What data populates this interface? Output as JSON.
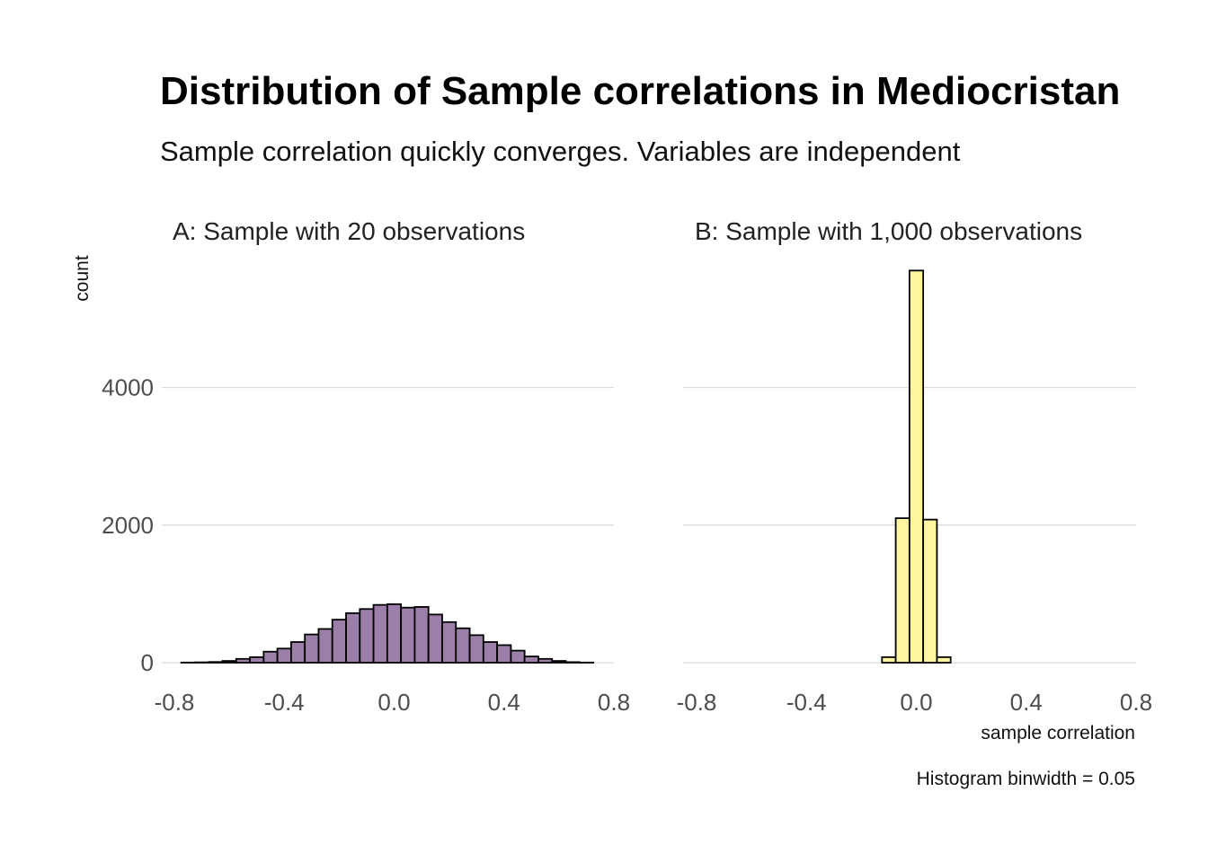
{
  "chart_data": {
    "type": "bar",
    "title": "Distribution of Sample correlations in Mediocristan",
    "subtitle": "Sample correlation quickly converges. Variables are independent",
    "xlabel": "sample correlation",
    "ylabel": "count",
    "caption": "Histogram binwidth = 0.05",
    "binwidth": 0.05,
    "xlim": [
      -0.8,
      0.8
    ],
    "ylim": [
      0,
      5900
    ],
    "x_ticks": [
      -0.8,
      -0.4,
      0.0,
      0.4,
      0.8
    ],
    "x_tick_labels": [
      "-0.8",
      "-0.4",
      "0.0",
      "0.4",
      "0.8"
    ],
    "y_ticks": [
      0,
      2000,
      4000
    ],
    "y_tick_labels": [
      "0",
      "2000",
      "4000"
    ],
    "grid": "horizontal",
    "panels": [
      {
        "name": "A: Sample with 20 observations",
        "color": "#9b7fa8",
        "bin_centers": [
          -0.75,
          -0.7,
          -0.65,
          -0.6,
          -0.55,
          -0.5,
          -0.45,
          -0.4,
          -0.35,
          -0.3,
          -0.25,
          -0.2,
          -0.15,
          -0.1,
          -0.05,
          0.0,
          0.05,
          0.1,
          0.15,
          0.2,
          0.25,
          0.3,
          0.35,
          0.4,
          0.45,
          0.5,
          0.55,
          0.6,
          0.65,
          0.7
        ],
        "counts": [
          2,
          5,
          10,
          25,
          55,
          80,
          160,
          205,
          300,
          410,
          490,
          625,
          720,
          780,
          840,
          850,
          800,
          810,
          700,
          590,
          500,
          400,
          300,
          255,
          175,
          90,
          55,
          25,
          8,
          2
        ]
      },
      {
        "name": "B: Sample with 1,000 observations",
        "color": "#fff59c",
        "bin_centers": [
          -0.75,
          -0.7,
          -0.65,
          -0.6,
          -0.55,
          -0.5,
          -0.45,
          -0.4,
          -0.35,
          -0.3,
          -0.25,
          -0.2,
          -0.15,
          -0.1,
          -0.05,
          0.0,
          0.05,
          0.1,
          0.15,
          0.2,
          0.25,
          0.3,
          0.35,
          0.4,
          0.45,
          0.5,
          0.55,
          0.6,
          0.65,
          0.7
        ],
        "counts": [
          0,
          0,
          0,
          0,
          0,
          0,
          0,
          0,
          0,
          0,
          0,
          0,
          0,
          80,
          2100,
          5700,
          2080,
          80,
          0,
          0,
          0,
          0,
          0,
          0,
          0,
          0,
          0,
          0,
          0,
          0
        ]
      }
    ]
  }
}
